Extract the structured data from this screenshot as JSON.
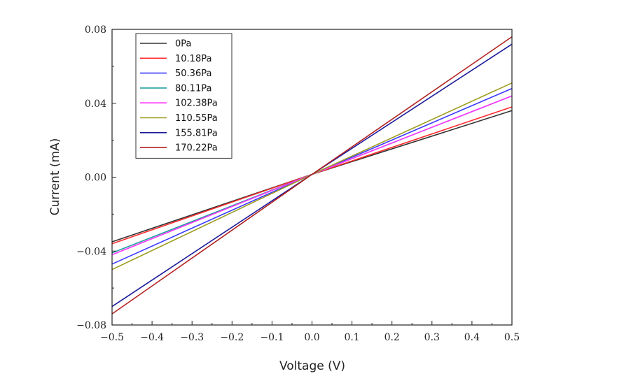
{
  "chart_data": {
    "type": "line",
    "title": "",
    "xlabel": "Voltage (V)",
    "ylabel": "Current (mA)",
    "xlim": [
      -0.5,
      0.5
    ],
    "ylim": [
      -0.08,
      0.08
    ],
    "x_ticks": [
      "−0.5",
      "−0.4",
      "−0.3",
      "−0.2",
      "−0.1",
      "0.0",
      "0.1",
      "0.2",
      "0.3",
      "0.4",
      "0.5"
    ],
    "y_ticks": [
      "0.08",
      "0.04",
      "0.00",
      "−0.04",
      "−0.08"
    ],
    "x_tick_values": [
      -0.5,
      -0.4,
      -0.3,
      -0.2,
      -0.1,
      0.0,
      0.1,
      0.2,
      0.3,
      0.4,
      0.5
    ],
    "y_tick_values": [
      0.08,
      0.04,
      0.0,
      -0.04,
      -0.08
    ],
    "grid": false,
    "legend_position": "top-left",
    "series": [
      {
        "name": "0Pa",
        "color": "#333333",
        "x": [
          -0.5,
          0.0,
          0.5
        ],
        "y": [
          -0.035,
          0.0015,
          0.036
        ]
      },
      {
        "name": "10.18Pa",
        "color": "#ff2a2a",
        "x": [
          -0.5,
          0.0,
          0.5
        ],
        "y": [
          -0.036,
          0.0015,
          0.038
        ]
      },
      {
        "name": "50.36Pa",
        "color": "#3a3aff",
        "x": [
          -0.5,
          0.0,
          0.5
        ],
        "y": [
          -0.047,
          0.0015,
          0.048
        ]
      },
      {
        "name": "80.11Pa",
        "color": "#20a0a0",
        "x": [
          -0.5,
          0.0,
          0.5
        ],
        "y": [
          -0.041,
          0.0015,
          0.044
        ]
      },
      {
        "name": "102.38Pa",
        "color": "#ff33ff",
        "x": [
          -0.5,
          0.0,
          0.5
        ],
        "y": [
          -0.042,
          0.0015,
          0.044
        ]
      },
      {
        "name": "110.55Pa",
        "color": "#9c9c20",
        "x": [
          -0.5,
          0.0,
          0.5
        ],
        "y": [
          -0.05,
          0.0015,
          0.051
        ]
      },
      {
        "name": "155.81Pa",
        "color": "#1a1a99",
        "x": [
          -0.5,
          0.0,
          0.5
        ],
        "y": [
          -0.07,
          0.0015,
          0.072
        ]
      },
      {
        "name": "170.22Pa",
        "color": "#b22222",
        "x": [
          -0.5,
          0.0,
          0.5
        ],
        "y": [
          -0.074,
          0.0015,
          0.076
        ]
      }
    ]
  }
}
